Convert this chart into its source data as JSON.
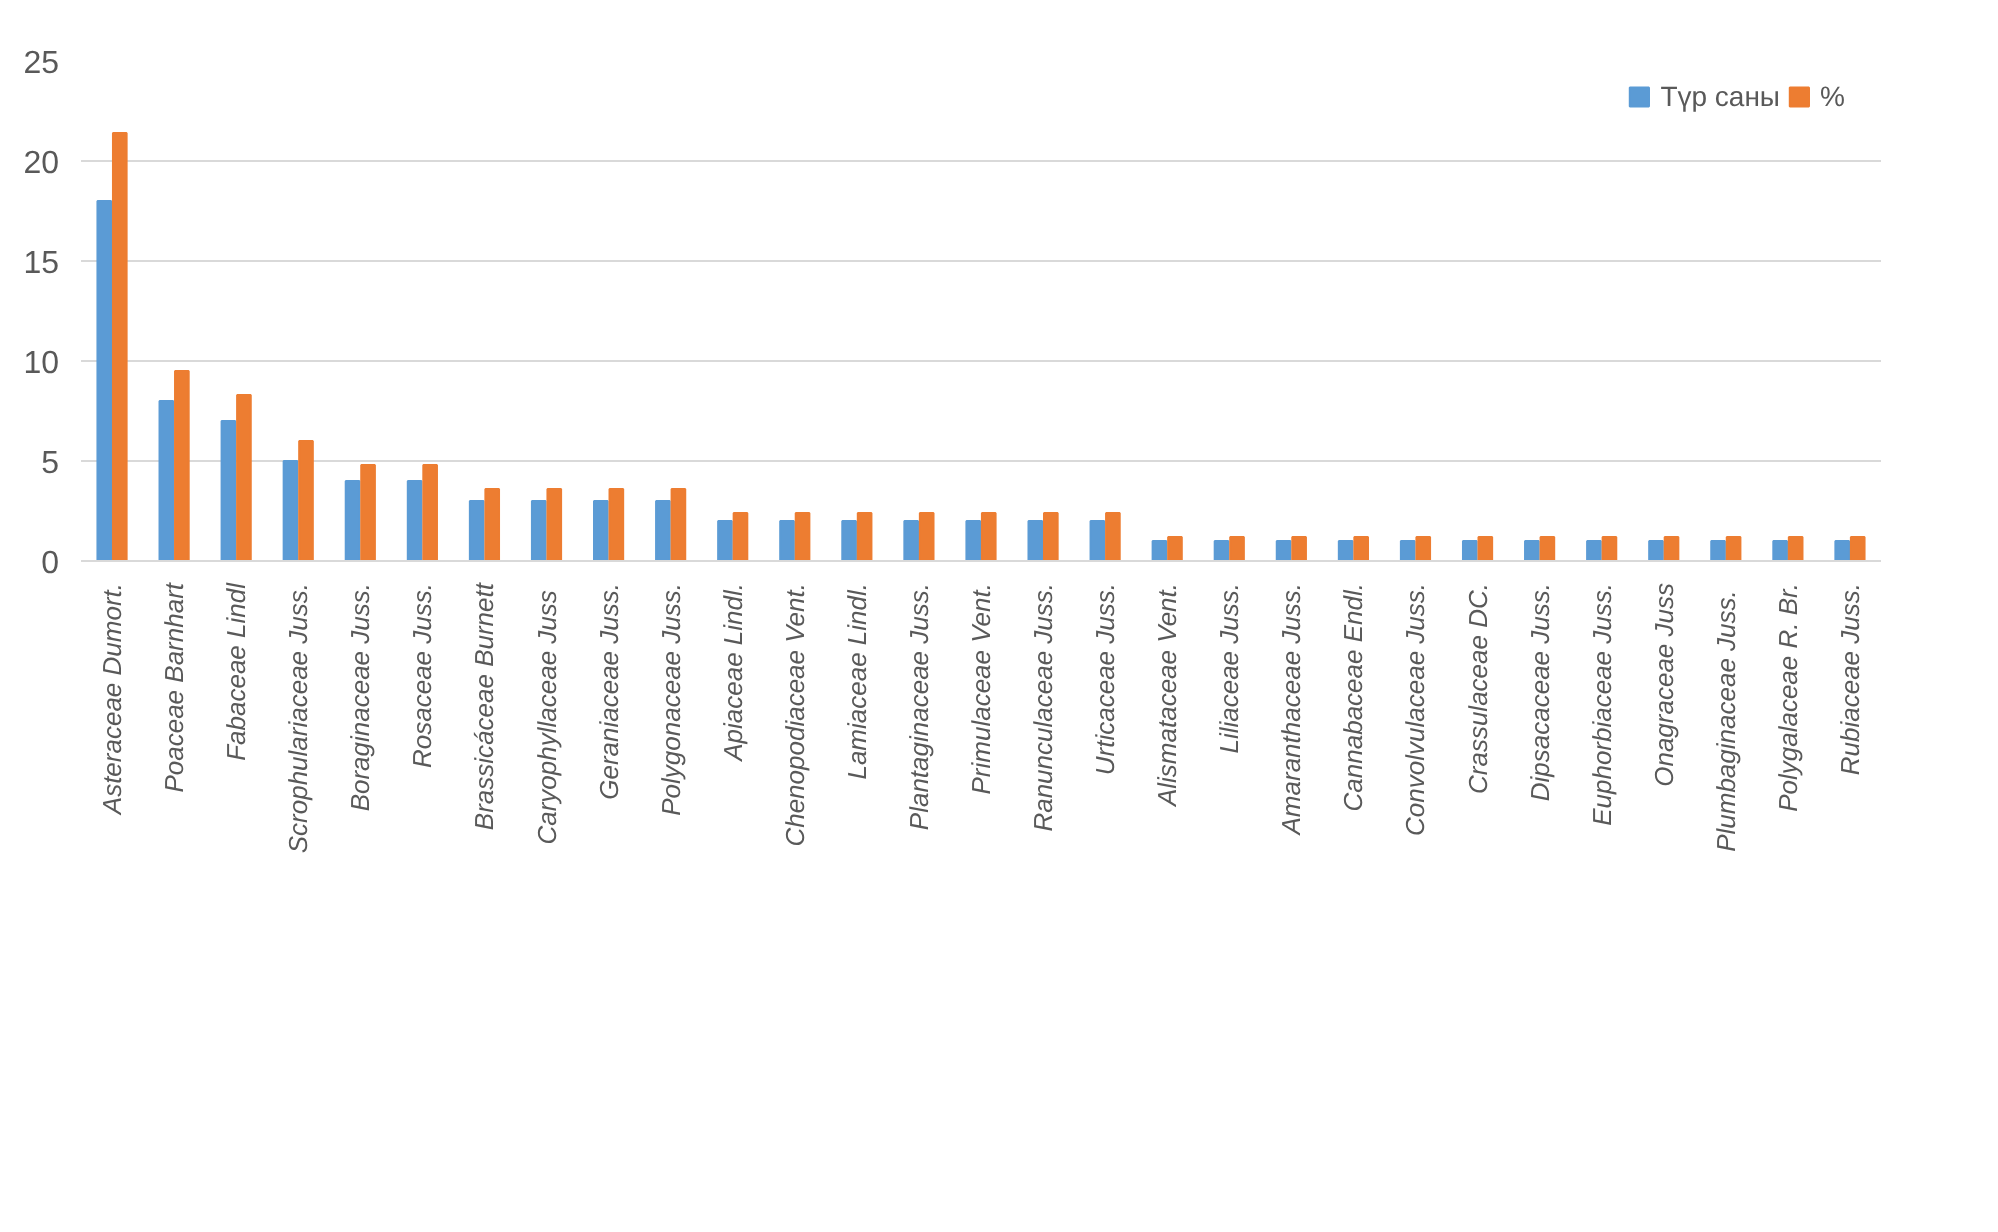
{
  "chart_data": {
    "type": "bar",
    "categories": [
      "Asteraceae Dumort.",
      "Poaceae Barnhart",
      "Fabaceae Lindl",
      "Scrophulariaceae Juss.",
      "Boraginaceae Juss.",
      "Rosaceae Juss.",
      "Brassicáceae Burnett",
      "Caryophyllaceae  Juss",
      "Geraniaceae Juss.",
      "Polygonaceae Juss.",
      "Apiaceae Lindl.",
      "Chenopodiaceae Vent.",
      "Lamiaceae Lindl.",
      "Plantaginaceae Juss.",
      "Primulaceae Vent.",
      "Ranunculaceae Juss.",
      "Urticaceae Juss.",
      "Alismataceae Vent.",
      "Liliaceae Juss.",
      "Amaranthaceae Juss.",
      "Cannabaceae Endl.",
      "Convolvulaceae Juss.",
      "Crassulaceae DC.",
      "Dipsacaceae Juss.",
      "Euphorbiaceae Juss.",
      "Onagraceae Juss",
      "Plumbaginaceae  Juss.",
      "Polygalaceae R. Br.",
      "Rubiaceae Juss."
    ],
    "series": [
      {
        "name": "Түр саны",
        "color": "#5b9bd5",
        "values": [
          18,
          8,
          7,
          5,
          4,
          4,
          3,
          3,
          3,
          3,
          2,
          2,
          2,
          2,
          2,
          2,
          2,
          1,
          1,
          1,
          1,
          1,
          1,
          1,
          1,
          1,
          1,
          1,
          1
        ]
      },
      {
        "name": "%",
        "color": "#ed7d31",
        "values": [
          21.4,
          9.5,
          8.3,
          6.0,
          4.8,
          4.8,
          3.6,
          3.6,
          3.6,
          3.6,
          2.4,
          2.4,
          2.4,
          2.4,
          2.4,
          2.4,
          2.4,
          1.2,
          1.2,
          1.2,
          1.2,
          1.2,
          1.2,
          1.2,
          1.2,
          1.2,
          1.2,
          1.2,
          1.2
        ]
      }
    ],
    "ylim": [
      0,
      25
    ],
    "yticks": [
      0,
      5,
      10,
      15,
      20,
      25
    ],
    "grid": "y",
    "legend": "top right"
  }
}
